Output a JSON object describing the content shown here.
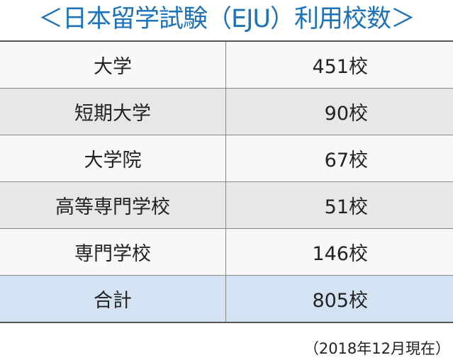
{
  "title": "＜日本留学試験（EJU）利用校数＞",
  "table": {
    "rows": [
      [
        "大学",
        "451校"
      ],
      [
        "短期大学",
        "90校"
      ],
      [
        "大学院",
        "67校"
      ],
      [
        "高等専門学校",
        "51校"
      ],
      [
        "専門学校",
        "146校"
      ],
      [
        "合計",
        "805校"
      ]
    ]
  },
  "note": "（2018年12月現在）"
}
